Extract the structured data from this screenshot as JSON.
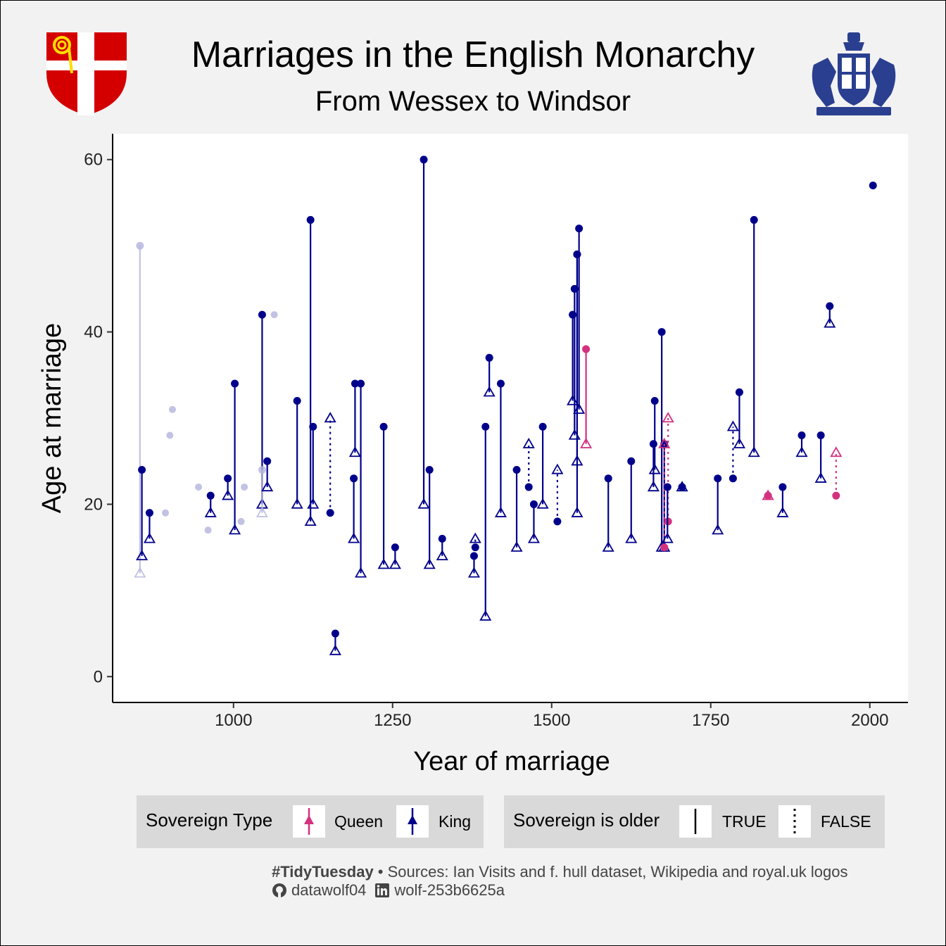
{
  "header": {
    "title": "Marriages in the English Monarchy",
    "subtitle": "From Wessex to Windsor"
  },
  "legend": {
    "type_title": "Sovereign Type",
    "type_items": [
      {
        "label": "Queen",
        "color": "#d4317e"
      },
      {
        "label": "King",
        "color": "#00008b"
      }
    ],
    "older_title": "Sovereign is older",
    "older_items": [
      {
        "label": "TRUE",
        "line": "solid"
      },
      {
        "label": "FALSE",
        "line": "dotted"
      }
    ]
  },
  "caption": {
    "hashtag": "#TidyTuesday",
    "sources": " • Sources: Ian Visits and f. hull dataset, Wikipedia and royal.uk logos",
    "github_icon": "github-icon",
    "github": "datawolf04",
    "linkedin_icon": "linkedin-icon",
    "linkedin": "wolf-253b6625a"
  },
  "logos": {
    "left": "shield-icon",
    "right": "royal-coat-of-arms-icon"
  },
  "chart_data": {
    "type": "scatter",
    "xlabel": "Year of marriage",
    "ylabel": "Age at marriage",
    "xlim": [
      810,
      2060
    ],
    "ylim": [
      -3,
      63
    ],
    "xticks": [
      1000,
      1250,
      1500,
      1750,
      2000
    ],
    "yticks": [
      0,
      20,
      40,
      60
    ],
    "colors": {
      "King": "#00008b",
      "Queen": "#d4317e",
      "faded": "#b3b3dd"
    },
    "marriages": [
      {
        "year": 853,
        "sovereign_age": 50,
        "consort_age": 12,
        "type": "King",
        "faded": true
      },
      {
        "year": 856,
        "sovereign_age": 24,
        "consort_age": 14,
        "type": "King"
      },
      {
        "year": 868,
        "sovereign_age": 19,
        "consort_age": 16,
        "type": "King"
      },
      {
        "year": 964,
        "sovereign_age": 21,
        "consort_age": 19,
        "type": "King"
      },
      {
        "year": 991,
        "sovereign_age": 23,
        "consort_age": 21,
        "type": "King"
      },
      {
        "year": 1002,
        "sovereign_age": 34,
        "consort_age": 17,
        "type": "King"
      },
      {
        "year": 1045,
        "sovereign_age": 42,
        "consort_age": 20,
        "type": "King"
      },
      {
        "year": 1045,
        "sovereign_age": 24,
        "consort_age": 19,
        "type": "King",
        "faded": true
      },
      {
        "year": 1053,
        "sovereign_age": 25,
        "consort_age": 22,
        "type": "King"
      },
      {
        "year": 1100,
        "sovereign_age": 32,
        "consort_age": 20,
        "type": "King"
      },
      {
        "year": 1121,
        "sovereign_age": 53,
        "consort_age": 18,
        "type": "King"
      },
      {
        "year": 1125,
        "sovereign_age": 29,
        "consort_age": 20,
        "type": "King"
      },
      {
        "year": 1152,
        "sovereign_age": 19,
        "consort_age": 30,
        "type": "King"
      },
      {
        "year": 1160,
        "sovereign_age": 5,
        "consort_age": 3,
        "type": "King"
      },
      {
        "year": 1189,
        "sovereign_age": 23,
        "consort_age": 16,
        "type": "King"
      },
      {
        "year": 1191,
        "sovereign_age": 34,
        "consort_age": 26,
        "type": "King"
      },
      {
        "year": 1200,
        "sovereign_age": 34,
        "consort_age": 12,
        "type": "King"
      },
      {
        "year": 1236,
        "sovereign_age": 29,
        "consort_age": 13,
        "type": "King"
      },
      {
        "year": 1254,
        "sovereign_age": 15,
        "consort_age": 13,
        "type": "King"
      },
      {
        "year": 1299,
        "sovereign_age": 60,
        "consort_age": 20,
        "type": "King"
      },
      {
        "year": 1308,
        "sovereign_age": 24,
        "consort_age": 13,
        "type": "King"
      },
      {
        "year": 1328,
        "sovereign_age": 16,
        "consort_age": 14,
        "type": "King"
      },
      {
        "year": 1378,
        "sovereign_age": 14,
        "consort_age": 12,
        "type": "King"
      },
      {
        "year": 1380,
        "sovereign_age": 15,
        "consort_age": 16,
        "type": "King"
      },
      {
        "year": 1396,
        "sovereign_age": 29,
        "consort_age": 7,
        "type": "King"
      },
      {
        "year": 1402,
        "sovereign_age": 37,
        "consort_age": 33,
        "type": "King"
      },
      {
        "year": 1420,
        "sovereign_age": 34,
        "consort_age": 19,
        "type": "King"
      },
      {
        "year": 1445,
        "sovereign_age": 24,
        "consort_age": 15,
        "type": "King"
      },
      {
        "year": 1464,
        "sovereign_age": 22,
        "consort_age": 27,
        "type": "King"
      },
      {
        "year": 1472,
        "sovereign_age": 20,
        "consort_age": 16,
        "type": "King"
      },
      {
        "year": 1486,
        "sovereign_age": 29,
        "consort_age": 20,
        "type": "King"
      },
      {
        "year": 1509,
        "sovereign_age": 18,
        "consort_age": 24,
        "type": "King"
      },
      {
        "year": 1533,
        "sovereign_age": 42,
        "consort_age": 32,
        "type": "King"
      },
      {
        "year": 1536,
        "sovereign_age": 45,
        "consort_age": 28,
        "type": "King"
      },
      {
        "year": 1540,
        "sovereign_age": 49,
        "consort_age": 25,
        "type": "King"
      },
      {
        "year": 1540,
        "sovereign_age": 49,
        "consort_age": 19,
        "type": "King"
      },
      {
        "year": 1543,
        "sovereign_age": 52,
        "consort_age": 31,
        "type": "King"
      },
      {
        "year": 1554,
        "sovereign_age": 38,
        "consort_age": 27,
        "type": "Queen"
      },
      {
        "year": 1589,
        "sovereign_age": 23,
        "consort_age": 15,
        "type": "King"
      },
      {
        "year": 1625,
        "sovereign_age": 25,
        "consort_age": 16,
        "type": "King"
      },
      {
        "year": 1662,
        "sovereign_age": 32,
        "consort_age": 24,
        "type": "King"
      },
      {
        "year": 1660,
        "sovereign_age": 27,
        "consort_age": 22,
        "type": "King"
      },
      {
        "year": 1673,
        "sovereign_age": 40,
        "consort_age": 15,
        "type": "King"
      },
      {
        "year": 1677,
        "sovereign_age": 27,
        "consort_age": 15,
        "type": "King"
      },
      {
        "year": 1677,
        "sovereign_age": 15,
        "consort_age": 27,
        "type": "Queen"
      },
      {
        "year": 1683,
        "sovereign_age": 18,
        "consort_age": 30,
        "type": "Queen"
      },
      {
        "year": 1682,
        "sovereign_age": 22,
        "consort_age": 16,
        "type": "King"
      },
      {
        "year": 1705,
        "sovereign_age": 22,
        "consort_age": 22,
        "type": "King"
      },
      {
        "year": 1761,
        "sovereign_age": 23,
        "consort_age": 17,
        "type": "King"
      },
      {
        "year": 1785,
        "sovereign_age": 23,
        "consort_age": 29,
        "type": "King"
      },
      {
        "year": 1795,
        "sovereign_age": 33,
        "consort_age": 27,
        "type": "King"
      },
      {
        "year": 1818,
        "sovereign_age": 53,
        "consort_age": 26,
        "type": "King"
      },
      {
        "year": 1840,
        "sovereign_age": 21,
        "consort_age": 21,
        "type": "Queen"
      },
      {
        "year": 1863,
        "sovereign_age": 22,
        "consort_age": 19,
        "type": "King"
      },
      {
        "year": 1893,
        "sovereign_age": 28,
        "consort_age": 26,
        "type": "King"
      },
      {
        "year": 1923,
        "sovereign_age": 28,
        "consort_age": 23,
        "type": "King"
      },
      {
        "year": 1937,
        "sovereign_age": 43,
        "consort_age": 41,
        "type": "King"
      },
      {
        "year": 1947,
        "sovereign_age": 21,
        "consort_age": 26,
        "type": "Queen"
      },
      {
        "year": 2005,
        "sovereign_age": 57,
        "consort_age": null,
        "type": "King"
      }
    ],
    "faded_points": [
      {
        "year": 900,
        "age": 28
      },
      {
        "year": 904,
        "age": 31
      },
      {
        "year": 893,
        "age": 19
      },
      {
        "year": 945,
        "age": 22
      },
      {
        "year": 960,
        "age": 17
      },
      {
        "year": 1012,
        "age": 18
      },
      {
        "year": 1017,
        "age": 22
      },
      {
        "year": 1064,
        "age": 42
      }
    ]
  }
}
